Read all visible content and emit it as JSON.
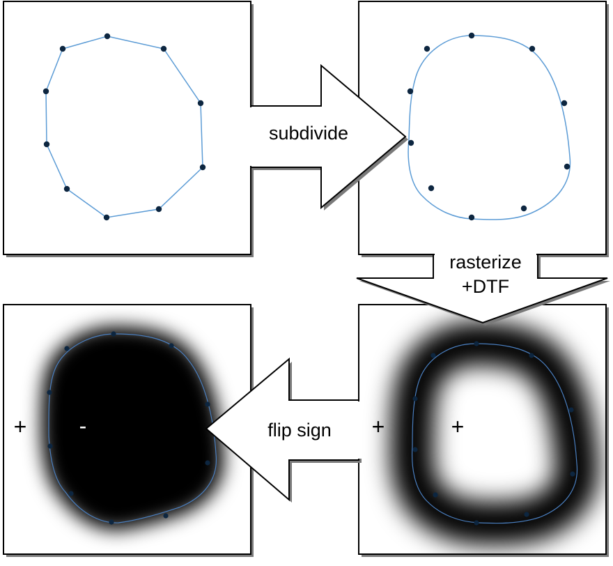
{
  "steps": {
    "subdivide": "subdivide",
    "rasterize_line1": "rasterize",
    "rasterize_line2": "+DTF",
    "flip_sign": "flip sign"
  },
  "signs": {
    "flipped_outside": "+",
    "flipped_inside": "-",
    "dtf_outside": "+",
    "dtf_inside": "+"
  },
  "colors": {
    "curve": "#5b9bd5",
    "control_point": "#0d2640",
    "frame": "#000000",
    "shadow": "#7a7a7a",
    "field_dark": "#000000"
  }
}
